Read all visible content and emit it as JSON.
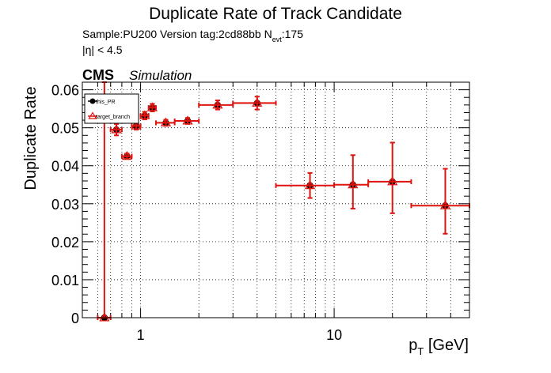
{
  "chart_data": {
    "type": "scatter",
    "title": "Duplicate Rate of Track Candidate",
    "info_line1_pre": "Sample:PU200   Version tag:2cd88bb  N",
    "info_line1_sub": "evt",
    "info_line1_post": ":175",
    "info_line2": "|η| < 4.5",
    "cms_label": "CMS",
    "cms_extra": "Simulation",
    "ylabel": "Duplicate Rate",
    "xlabel_main": "p",
    "xlabel_sub": "T",
    "xlabel_unit": " [GeV]",
    "xscale": "log",
    "xlim": [
      0.5,
      50
    ],
    "ylim": [
      0,
      0.062
    ],
    "grid": true,
    "legend_placement": "top-left",
    "x_tick_labels": [
      {
        "value": 1,
        "label": "1"
      },
      {
        "value": 10,
        "label": "10"
      }
    ],
    "y_tick_labels": [
      {
        "value": 0,
        "label": "0"
      },
      {
        "value": 0.01,
        "label": "0.01"
      },
      {
        "value": 0.02,
        "label": "0.02"
      },
      {
        "value": 0.03,
        "label": "0.03"
      },
      {
        "value": 0.04,
        "label": "0.04"
      },
      {
        "value": 0.05,
        "label": "0.05"
      },
      {
        "value": 0.06,
        "label": "0.06"
      }
    ],
    "series": [
      {
        "name": "this_PR",
        "color": "#000000",
        "marker": "filled-circle",
        "points": [
          {
            "x": 0.65,
            "xlo": 0.6,
            "xhi": 0.7,
            "y": 0.0,
            "ylo": 0.0,
            "yhi": 0.062
          },
          {
            "x": 0.75,
            "xlo": 0.7,
            "xhi": 0.8,
            "y": 0.0495,
            "ylo": 0.048,
            "yhi": 0.051
          },
          {
            "x": 0.85,
            "xlo": 0.8,
            "xhi": 0.9,
            "y": 0.0425,
            "ylo": 0.0418,
            "yhi": 0.0432
          },
          {
            "x": 0.95,
            "xlo": 0.9,
            "xhi": 1.0,
            "y": 0.0505,
            "ylo": 0.0495,
            "yhi": 0.0515
          },
          {
            "x": 1.05,
            "xlo": 1.0,
            "xhi": 1.1,
            "y": 0.0532,
            "ylo": 0.0522,
            "yhi": 0.0542
          },
          {
            "x": 1.15,
            "xlo": 1.1,
            "xhi": 1.2,
            "y": 0.0553,
            "ylo": 0.0543,
            "yhi": 0.0563
          },
          {
            "x": 1.35,
            "xlo": 1.2,
            "xhi": 1.5,
            "y": 0.0513,
            "ylo": 0.0505,
            "yhi": 0.0521
          },
          {
            "x": 1.75,
            "xlo": 1.5,
            "xhi": 2.0,
            "y": 0.0518,
            "ylo": 0.051,
            "yhi": 0.0526
          },
          {
            "x": 2.5,
            "xlo": 2.0,
            "xhi": 3.0,
            "y": 0.056,
            "ylo": 0.0548,
            "yhi": 0.0572
          },
          {
            "x": 4.0,
            "xlo": 3.0,
            "xhi": 5.0,
            "y": 0.0565,
            "ylo": 0.0548,
            "yhi": 0.0582
          },
          {
            "x": 7.5,
            "xlo": 5.0,
            "xhi": 10.0,
            "y": 0.0348,
            "ylo": 0.0315,
            "yhi": 0.0381
          },
          {
            "x": 12.5,
            "xlo": 10.0,
            "xhi": 15.0,
            "y": 0.035,
            "ylo": 0.0287,
            "yhi": 0.0428
          },
          {
            "x": 20.0,
            "xlo": 15.0,
            "xhi": 25.0,
            "y": 0.0358,
            "ylo": 0.0275,
            "yhi": 0.0461
          },
          {
            "x": 37.5,
            "xlo": 25.0,
            "xhi": 50.0,
            "y": 0.0295,
            "ylo": 0.0221,
            "yhi": 0.0392
          }
        ]
      },
      {
        "name": "target_branch",
        "color": "#e0140e",
        "marker": "open-triangle",
        "points": [
          {
            "x": 0.65,
            "xlo": 0.6,
            "xhi": 0.7,
            "y": 0.0,
            "ylo": 0.0,
            "yhi": 0.062
          },
          {
            "x": 0.75,
            "xlo": 0.7,
            "xhi": 0.8,
            "y": 0.0495,
            "ylo": 0.048,
            "yhi": 0.051
          },
          {
            "x": 0.85,
            "xlo": 0.8,
            "xhi": 0.9,
            "y": 0.0425,
            "ylo": 0.0418,
            "yhi": 0.0432
          },
          {
            "x": 0.95,
            "xlo": 0.9,
            "xhi": 1.0,
            "y": 0.0505,
            "ylo": 0.0495,
            "yhi": 0.0515
          },
          {
            "x": 1.05,
            "xlo": 1.0,
            "xhi": 1.1,
            "y": 0.0532,
            "ylo": 0.0522,
            "yhi": 0.0542
          },
          {
            "x": 1.15,
            "xlo": 1.1,
            "xhi": 1.2,
            "y": 0.0553,
            "ylo": 0.0543,
            "yhi": 0.0563
          },
          {
            "x": 1.35,
            "xlo": 1.2,
            "xhi": 1.5,
            "y": 0.0513,
            "ylo": 0.0505,
            "yhi": 0.0521
          },
          {
            "x": 1.75,
            "xlo": 1.5,
            "xhi": 2.0,
            "y": 0.0518,
            "ylo": 0.051,
            "yhi": 0.0526
          },
          {
            "x": 2.5,
            "xlo": 2.0,
            "xhi": 3.0,
            "y": 0.056,
            "ylo": 0.0548,
            "yhi": 0.0572
          },
          {
            "x": 4.0,
            "xlo": 3.0,
            "xhi": 5.0,
            "y": 0.0565,
            "ylo": 0.0548,
            "yhi": 0.0582
          },
          {
            "x": 7.5,
            "xlo": 5.0,
            "xhi": 10.0,
            "y": 0.0348,
            "ylo": 0.0315,
            "yhi": 0.0381
          },
          {
            "x": 12.5,
            "xlo": 10.0,
            "xhi": 15.0,
            "y": 0.035,
            "ylo": 0.0287,
            "yhi": 0.0428
          },
          {
            "x": 20.0,
            "xlo": 15.0,
            "xhi": 25.0,
            "y": 0.0358,
            "ylo": 0.0275,
            "yhi": 0.0461
          },
          {
            "x": 37.5,
            "xlo": 25.0,
            "xhi": 50.0,
            "y": 0.0295,
            "ylo": 0.0221,
            "yhi": 0.0392
          }
        ]
      }
    ]
  }
}
